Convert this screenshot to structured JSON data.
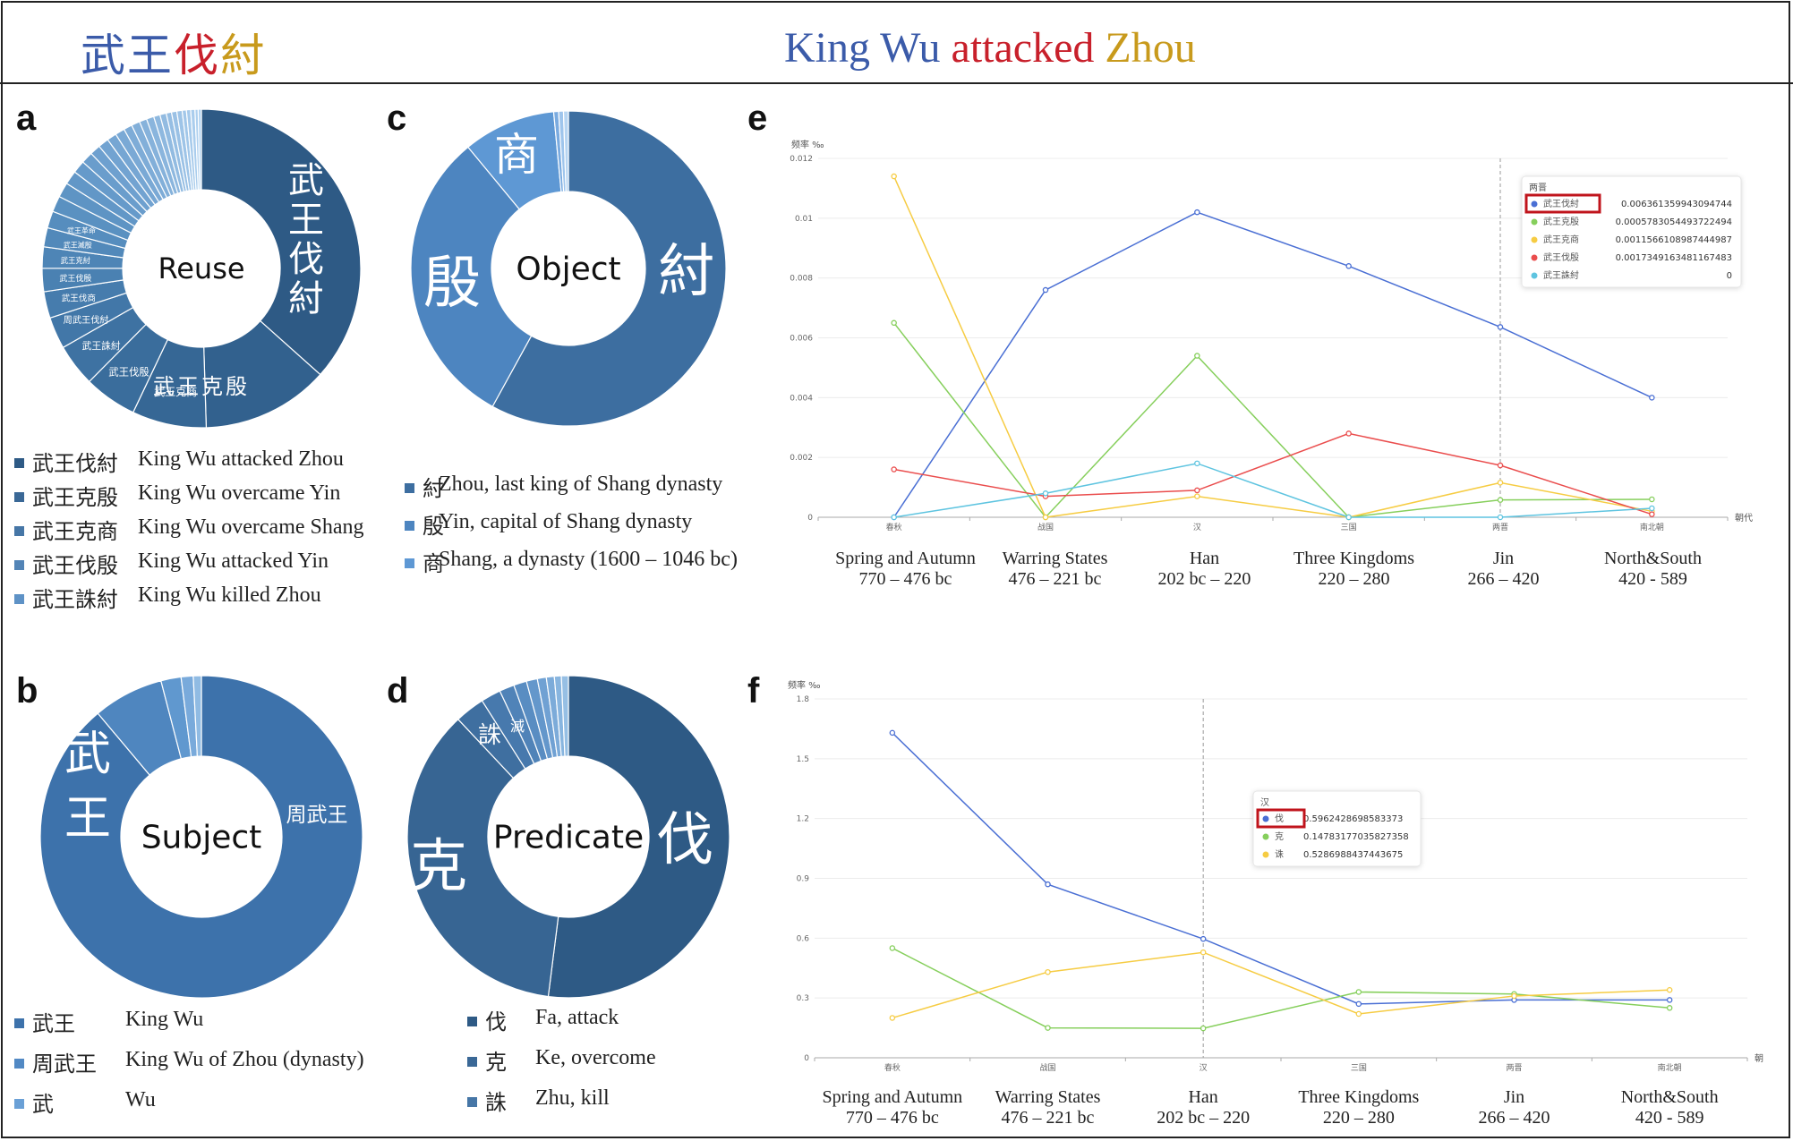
{
  "header": {
    "title_cn": [
      {
        "text": "武王",
        "color": "#3b5ba9"
      },
      {
        "text": "伐",
        "color": "#c8202b"
      },
      {
        "text": "紂",
        "color": "#c89a1c"
      }
    ],
    "title_en": [
      {
        "text": "King Wu ",
        "color": "#3b5ba9"
      },
      {
        "text": "attacked ",
        "color": "#c8202b"
      },
      {
        "text": "Zhou",
        "color": "#c89a1c"
      }
    ]
  },
  "panels": {
    "a": "a",
    "b": "b",
    "c": "c",
    "d": "d",
    "e": "e",
    "f": "f"
  },
  "legend_a": [
    {
      "cn": "武王伐紂",
      "en": "King Wu attacked Zhou",
      "color": "#2e5a85"
    },
    {
      "cn": "武王克殷",
      "en": "King Wu overcame Yin",
      "color": "#3a6896"
    },
    {
      "cn": "武王克商",
      "en": "King Wu overcame Shang",
      "color": "#4676a6"
    },
    {
      "cn": "武王伐殷",
      "en": "King Wu attacked Yin",
      "color": "#5284b6"
    },
    {
      "cn": "武王誅紂",
      "en": "King Wu killed Zhou",
      "color": "#5e92c6"
    }
  ],
  "legend_b": [
    {
      "cn": "武王",
      "en": "King Wu",
      "color": "#3d72ab"
    },
    {
      "cn": "周武王",
      "en": "King Wu of Zhou (dynasty)",
      "color": "#5289c4"
    },
    {
      "cn": "武",
      "en": "Wu",
      "color": "#6aa0d6"
    }
  ],
  "legend_c": [
    {
      "cn": "紂",
      "en": "Zhou, last king of Shang dynasty",
      "color": "#3d6ea0"
    },
    {
      "cn": "殷",
      "en": "Yin, capital of Shang dynasty",
      "color": "#4d85c0"
    },
    {
      "cn": "商",
      "en": "Shang, a dynasty (1600 – 1046 bc)",
      "color": "#5e98d4"
    }
  ],
  "legend_d": [
    {
      "cn": "伐",
      "en": "Fa, attack",
      "color": "#2e5a85"
    },
    {
      "cn": "克",
      "en": "Ke, overcome",
      "color": "#3a6896"
    },
    {
      "cn": "誅",
      "en": "Zhu, kill",
      "color": "#4676a6"
    }
  ],
  "periods": [
    {
      "name": "Spring and Autumn",
      "years": "770 – 476 bc"
    },
    {
      "name": "Warring States",
      "years": "476 – 221 bc"
    },
    {
      "name": "Han",
      "years": "202 bc – 220"
    },
    {
      "name": "Three Kingdoms",
      "years": "220 – 280"
    },
    {
      "name": "Jin",
      "years": "266 – 420"
    },
    {
      "name": "North&South",
      "years": "420 - 589"
    }
  ],
  "chart_data": [
    {
      "id": "a",
      "type": "pie",
      "donut": true,
      "center_label": "Reuse",
      "slices": [
        {
          "label": "武王伐紂",
          "value": 34,
          "color": "#2e5a85"
        },
        {
          "label": "武王克殷",
          "value": 12,
          "color": "#32618e"
        },
        {
          "label": "武王克商",
          "value": 7,
          "color": "#366795"
        },
        {
          "label": "武王伐殷",
          "value": 5,
          "color": "#3a6d9c"
        },
        {
          "label": "武王誅紂",
          "value": 4,
          "color": "#3e72a2"
        },
        {
          "label": "周武王伐紂",
          "value": 3,
          "color": "#4277a8"
        },
        {
          "label": "武王伐商",
          "value": 2.5,
          "color": "#467cad"
        },
        {
          "label": "武王伐殷",
          "value": 2.2,
          "color": "#4a81b2"
        },
        {
          "label": "武王克紂",
          "value": 2,
          "color": "#4e85b6"
        },
        {
          "label": "武王滅殷",
          "value": 1.8,
          "color": "#5289ba"
        },
        {
          "label": "武王革命",
          "value": 1.6,
          "color": "#568dbe"
        },
        {
          "label": "",
          "value": 1.5,
          "color": "#5a91c1"
        },
        {
          "label": "",
          "value": 1.4,
          "color": "#5e94c4"
        },
        {
          "label": "",
          "value": 1.3,
          "color": "#6297c7"
        },
        {
          "label": "",
          "value": 1.2,
          "color": "#669aca"
        },
        {
          "label": "",
          "value": 1.1,
          "color": "#6a9dcc"
        },
        {
          "label": "",
          "value": 1.0,
          "color": "#6ea0cf"
        },
        {
          "label": "",
          "value": 1.0,
          "color": "#72a3d1"
        },
        {
          "label": "",
          "value": 0.9,
          "color": "#76a6d3"
        },
        {
          "label": "",
          "value": 0.9,
          "color": "#7aa9d5"
        },
        {
          "label": "",
          "value": 0.8,
          "color": "#7eacd7"
        },
        {
          "label": "",
          "value": 0.8,
          "color": "#82afd9"
        },
        {
          "label": "",
          "value": 0.7,
          "color": "#86b2db"
        },
        {
          "label": "",
          "value": 0.7,
          "color": "#8ab5dd"
        },
        {
          "label": "",
          "value": 0.6,
          "color": "#8eb8df"
        },
        {
          "label": "",
          "value": 0.6,
          "color": "#92bbe1"
        },
        {
          "label": "",
          "value": 0.5,
          "color": "#96bee3"
        },
        {
          "label": "",
          "value": 0.5,
          "color": "#9ac1e5"
        },
        {
          "label": "",
          "value": 0.5,
          "color": "#9ec4e7"
        },
        {
          "label": "",
          "value": 0.4,
          "color": "#a2c7e9"
        },
        {
          "label": "",
          "value": 0.4,
          "color": "#a6caeb"
        },
        {
          "label": "",
          "value": 0.4,
          "color": "#aacded"
        },
        {
          "label": "",
          "value": 0.3,
          "color": "#aed0ef"
        },
        {
          "label": "",
          "value": 0.3,
          "color": "#b2d3f1"
        }
      ],
      "big_labels": [
        {
          "text": "武王伐紂",
          "slice": 0
        },
        {
          "text": "武王克殷",
          "slice": 1
        }
      ]
    },
    {
      "id": "b",
      "type": "pie",
      "donut": true,
      "center_label": "Subject",
      "slices": [
        {
          "label": "武王",
          "value": 88,
          "color": "#3d72ab"
        },
        {
          "label": "周武王",
          "value": 7,
          "color": "#4f86bf"
        },
        {
          "label": "武",
          "value": 2,
          "color": "#6098cf"
        },
        {
          "label": "",
          "value": 1.2,
          "color": "#79aadb"
        },
        {
          "label": "",
          "value": 0.8,
          "color": "#90bbe3"
        }
      ]
    },
    {
      "id": "c",
      "type": "pie",
      "donut": true,
      "center_label": "Object",
      "slices": [
        {
          "label": "紂",
          "value": 58,
          "color": "#3d6ea0"
        },
        {
          "label": "殷",
          "value": 31,
          "color": "#4d85c0"
        },
        {
          "label": "商",
          "value": 9.5,
          "color": "#5e98d4"
        },
        {
          "label": "",
          "value": 0.5,
          "color": "#7aabe0"
        },
        {
          "label": "",
          "value": 0.5,
          "color": "#9fc5ec"
        },
        {
          "label": "",
          "value": 0.5,
          "color": "#b7d5f2"
        }
      ]
    },
    {
      "id": "d",
      "type": "pie",
      "donut": true,
      "center_label": "Predicate",
      "slices": [
        {
          "label": "伐",
          "value": 52,
          "color": "#2e5a85"
        },
        {
          "label": "克",
          "value": 36,
          "color": "#376593"
        },
        {
          "label": "誅",
          "value": 3,
          "color": "#3f6fa0"
        },
        {
          "label": "滅",
          "value": 2,
          "color": "#4779ad"
        },
        {
          "label": "",
          "value": 1.5,
          "color": "#5083b8"
        },
        {
          "label": "",
          "value": 1.3,
          "color": "#598dc2"
        },
        {
          "label": "",
          "value": 1.1,
          "color": "#6497cb"
        },
        {
          "label": "",
          "value": 0.9,
          "color": "#70a1d3"
        },
        {
          "label": "",
          "value": 0.8,
          "color": "#7cabd9"
        },
        {
          "label": "",
          "value": 0.7,
          "color": "#88b5df"
        },
        {
          "label": "",
          "value": 0.7,
          "color": "#96bfe4"
        }
      ]
    },
    {
      "id": "e",
      "type": "line",
      "ylabel": "频率 ‰",
      "xlabel": "朝代",
      "categories": [
        "春秋",
        "战国",
        "汉",
        "三国",
        "两晋",
        "南北朝"
      ],
      "ylim": [
        0,
        0.012
      ],
      "yticks": [
        "0",
        "0.002",
        "0.004",
        "0.006",
        "0.008",
        "0.01",
        "0.012"
      ],
      "highlight_index": 4,
      "series": [
        {
          "name": "武王伐紂",
          "color": "#4a6fd4",
          "values": [
            0,
            0.0076,
            0.0102,
            0.0084,
            0.006361359943094744,
            0.004
          ]
        },
        {
          "name": "武王克殷",
          "color": "#86cf5c",
          "values": [
            0.0065,
            0,
            0.0054,
            0,
            0.0005783054493722494,
            0.0006
          ]
        },
        {
          "name": "武王克商",
          "color": "#f6cc43",
          "values": [
            0.0114,
            0,
            0.0007,
            0,
            0.0011566108987444987,
            0.0002
          ]
        },
        {
          "name": "武王伐殷",
          "color": "#ea4d4d",
          "values": [
            0.0016,
            0.0007,
            0.0009,
            0.0028,
            0.0017349163481167483,
            0.0001
          ]
        },
        {
          "name": "武王誅紂",
          "color": "#5ec4e0",
          "values": [
            0,
            0.0008,
            0.0018,
            0,
            0,
            0.0003
          ]
        }
      ],
      "tooltip": {
        "title": "两晋",
        "rows": [
          {
            "name": "武王伐紂",
            "value": "0.006361359943094744",
            "color": "#4a6fd4",
            "boxed": true
          },
          {
            "name": "武王克殷",
            "value": "0.0005783054493722494",
            "color": "#86cf5c"
          },
          {
            "name": "武王克商",
            "value": "0.0011566108987444987",
            "color": "#f6cc43"
          },
          {
            "name": "武王伐殷",
            "value": "0.0017349163481167483",
            "color": "#ea4d4d"
          },
          {
            "name": "武王誅紂",
            "value": "0",
            "color": "#5ec4e0"
          }
        ]
      }
    },
    {
      "id": "f",
      "type": "line",
      "ylabel": "频率 ‰",
      "xlabel": "朝代",
      "categories": [
        "春秋",
        "战国",
        "汉",
        "三国",
        "两晋",
        "南北朝"
      ],
      "ylim": [
        0,
        1.8
      ],
      "yticks": [
        "0",
        "0.3",
        "0.6",
        "0.9",
        "1.2",
        "1.5",
        "1.8"
      ],
      "highlight_index": 2,
      "series": [
        {
          "name": "伐",
          "color": "#4a6fd4",
          "values": [
            1.63,
            0.87,
            0.5962428698583373,
            0.27,
            0.29,
            0.29
          ]
        },
        {
          "name": "克",
          "color": "#86cf5c",
          "values": [
            0.55,
            0.15,
            0.14783177035827358,
            0.33,
            0.32,
            0.25
          ]
        },
        {
          "name": "诛",
          "color": "#f6cc43",
          "values": [
            0.2,
            0.43,
            0.5286988437443675,
            0.22,
            0.31,
            0.34
          ]
        }
      ],
      "tooltip": {
        "title": "汉",
        "rows": [
          {
            "name": "伐",
            "value": "0.5962428698583373",
            "color": "#4a6fd4",
            "boxed": true
          },
          {
            "name": "克",
            "value": "0.14783177035827358",
            "color": "#86cf5c"
          },
          {
            "name": "诛",
            "value": "0.5286988437443675",
            "color": "#f6cc43"
          }
        ]
      }
    }
  ]
}
